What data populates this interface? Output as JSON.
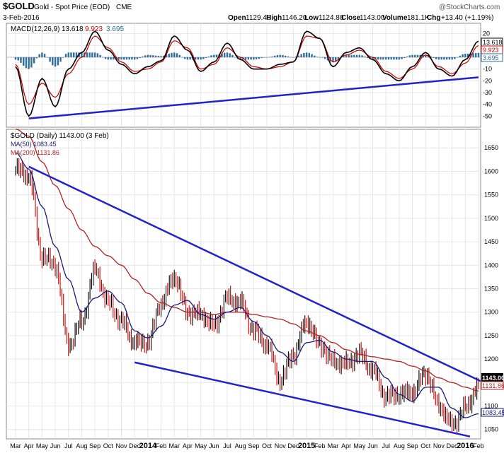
{
  "header": {
    "symbol": "$GOLD",
    "name": "Gold - Spot Price (EOD)",
    "exchange": "CME",
    "date": "3-Feb-2016",
    "brand": "@StockCharts.com",
    "quote": {
      "open_label": "Open",
      "open": "1129.40",
      "high_label": "High",
      "high": "1146.20",
      "low_label": "Low",
      "low": "1124.80",
      "close_label": "Close",
      "close": "1143.00",
      "volume_label": "Volume",
      "volume": "181.1K",
      "chg_label": "Chg",
      "chg": "+13.40 (+1.19%)"
    }
  },
  "macd_panel": {
    "legend_name": "MACD(12,26,9)",
    "macd_value": "13.618",
    "signal_value": "9.923",
    "hist_value": "3.695",
    "ylim": [
      -57,
      27
    ],
    "ticks": [
      "20",
      "10",
      "0",
      "-10",
      "-20",
      "-30",
      "-40",
      "-50"
    ],
    "badges": {
      "macd": "13.618",
      "signal": "9.923",
      "hist": "3.695"
    }
  },
  "price_panel": {
    "legend_title": "$GOLD (Daily) 1143.00 (3 Feb)",
    "ma50_label": "MA(50) 1083.45",
    "ma200_label": "MA(200) 1131.86",
    "ylim": [
      1033,
      1685
    ],
    "ticks": [
      "1650",
      "1600",
      "1550",
      "1500",
      "1450",
      "1400",
      "1350",
      "1300",
      "1250",
      "1200",
      "1150",
      "1100",
      "1050"
    ],
    "badges": {
      "close": "1143.00",
      "ma200": "1131.86",
      "ma50": "1083.45"
    }
  },
  "x_axis": {
    "labels": [
      "Mar",
      "Apr",
      "May",
      "Jun",
      "Jul",
      "Aug",
      "Sep",
      "Oct",
      "Nov",
      "Dec",
      "2014",
      "Feb",
      "Mar",
      "Apr",
      "May",
      "Jun",
      "Jul",
      "Aug",
      "Sep",
      "Oct",
      "Nov",
      "Dec",
      "2015",
      "Feb",
      "Mar",
      "Apr",
      "May",
      "Jun",
      "Jul",
      "Aug",
      "Sep",
      "Oct",
      "Nov",
      "Dec",
      "2016",
      "Feb"
    ],
    "bold": [
      "2014",
      "2015",
      "2016"
    ]
  },
  "colors": {
    "price": "#000000",
    "price_down": "#cc0000",
    "ma50": "#1a1a7a",
    "ma200": "#b22222",
    "macd_line": "#000000",
    "signal_line": "#cc0000",
    "histogram": "#2e6e9e",
    "trendline": "#2222cc",
    "grid": "#e6e6e6"
  },
  "chart_data": [
    {
      "type": "line",
      "title": "MACD(12,26,9)",
      "x": [
        "Mar",
        "Apr",
        "May",
        "Jun",
        "Jul",
        "Aug",
        "Sep",
        "Oct",
        "Nov",
        "Dec",
        "2014",
        "Feb",
        "Mar",
        "Apr",
        "May",
        "Jun",
        "Jul",
        "Aug",
        "Sep",
        "Oct",
        "Nov",
        "Dec",
        "2015",
        "Feb",
        "Mar",
        "Apr",
        "May",
        "Jun",
        "Jul",
        "Aug",
        "Sep",
        "Oct",
        "Nov",
        "Dec",
        "2016",
        "Feb"
      ],
      "series": [
        {
          "name": "MACD",
          "values": [
            -8,
            -50,
            -18,
            -42,
            -10,
            4,
            22,
            6,
            -6,
            -14,
            -8,
            -3,
            18,
            6,
            -12,
            -4,
            12,
            -2,
            -10,
            -10,
            -6,
            -4,
            22,
            16,
            -8,
            4,
            8,
            -2,
            -14,
            -20,
            -8,
            4,
            -10,
            -16,
            -2,
            13.618
          ]
        },
        {
          "name": "Signal",
          "values": [
            -6,
            -40,
            -22,
            -34,
            -14,
            0,
            18,
            8,
            -4,
            -12,
            -10,
            -4,
            14,
            8,
            -10,
            -6,
            8,
            0,
            -8,
            -10,
            -8,
            -4,
            18,
            16,
            -4,
            2,
            6,
            0,
            -12,
            -18,
            -10,
            2,
            -8,
            -14,
            -5,
            9.923
          ]
        },
        {
          "name": "Histogram",
          "values": [
            -2,
            -10,
            4,
            -8,
            4,
            4,
            4,
            -2,
            -2,
            -2,
            2,
            1,
            4,
            -2,
            -2,
            2,
            4,
            -2,
            -2,
            0,
            2,
            0,
            4,
            0,
            -4,
            2,
            2,
            -2,
            -2,
            -2,
            2,
            2,
            -2,
            -2,
            3,
            3.695
          ]
        }
      ],
      "ylim": [
        -57,
        27
      ]
    },
    {
      "type": "line",
      "title": "$GOLD (Daily) 1143.00 (3 Feb)",
      "x": [
        "Mar",
        "Apr",
        "May",
        "Jun",
        "Jul",
        "Aug",
        "Sep",
        "Oct",
        "Nov",
        "Dec",
        "2014",
        "Feb",
        "Mar",
        "Apr",
        "May",
        "Jun",
        "Jul",
        "Aug",
        "Sep",
        "Oct",
        "Nov",
        "Dec",
        "2015",
        "Feb",
        "Mar",
        "Apr",
        "May",
        "Jun",
        "Jul",
        "Aug",
        "Sep",
        "Oct",
        "Nov",
        "Dec",
        "2016",
        "Feb"
      ],
      "series": [
        {
          "name": "$GOLD",
          "values": [
            1605,
            1590,
            1420,
            1400,
            1230,
            1280,
            1390,
            1320,
            1280,
            1235,
            1235,
            1320,
            1375,
            1300,
            1295,
            1270,
            1330,
            1320,
            1260,
            1230,
            1155,
            1210,
            1280,
            1230,
            1195,
            1190,
            1210,
            1175,
            1120,
            1125,
            1130,
            1170,
            1100,
            1060,
            1095,
            1143
          ]
        },
        {
          "name": "MA(50)",
          "values": [
            1640,
            1605,
            1525,
            1440,
            1370,
            1300,
            1330,
            1345,
            1320,
            1260,
            1245,
            1270,
            1315,
            1325,
            1295,
            1285,
            1300,
            1310,
            1280,
            1250,
            1215,
            1195,
            1235,
            1240,
            1215,
            1200,
            1195,
            1195,
            1160,
            1125,
            1110,
            1140,
            1140,
            1095,
            1075,
            1083.45
          ]
        },
        {
          "name": "MA(200)",
          "values": [
            1690,
            1675,
            1620,
            1570,
            1520,
            1475,
            1440,
            1420,
            1400,
            1370,
            1340,
            1320,
            1310,
            1300,
            1300,
            1295,
            1300,
            1300,
            1295,
            1290,
            1285,
            1275,
            1260,
            1250,
            1235,
            1220,
            1210,
            1205,
            1200,
            1195,
            1185,
            1175,
            1160,
            1150,
            1140,
            1131.86
          ]
        }
      ],
      "trendlines": [
        {
          "name": "upper",
          "from": [
            "Apr",
            1610
          ],
          "to": [
            "Feb",
            1153
          ]
        },
        {
          "name": "lower",
          "from": [
            "Dec",
            1193
          ],
          "to": [
            "Feb",
            1035
          ]
        }
      ],
      "ylim": [
        1033,
        1685
      ]
    }
  ]
}
